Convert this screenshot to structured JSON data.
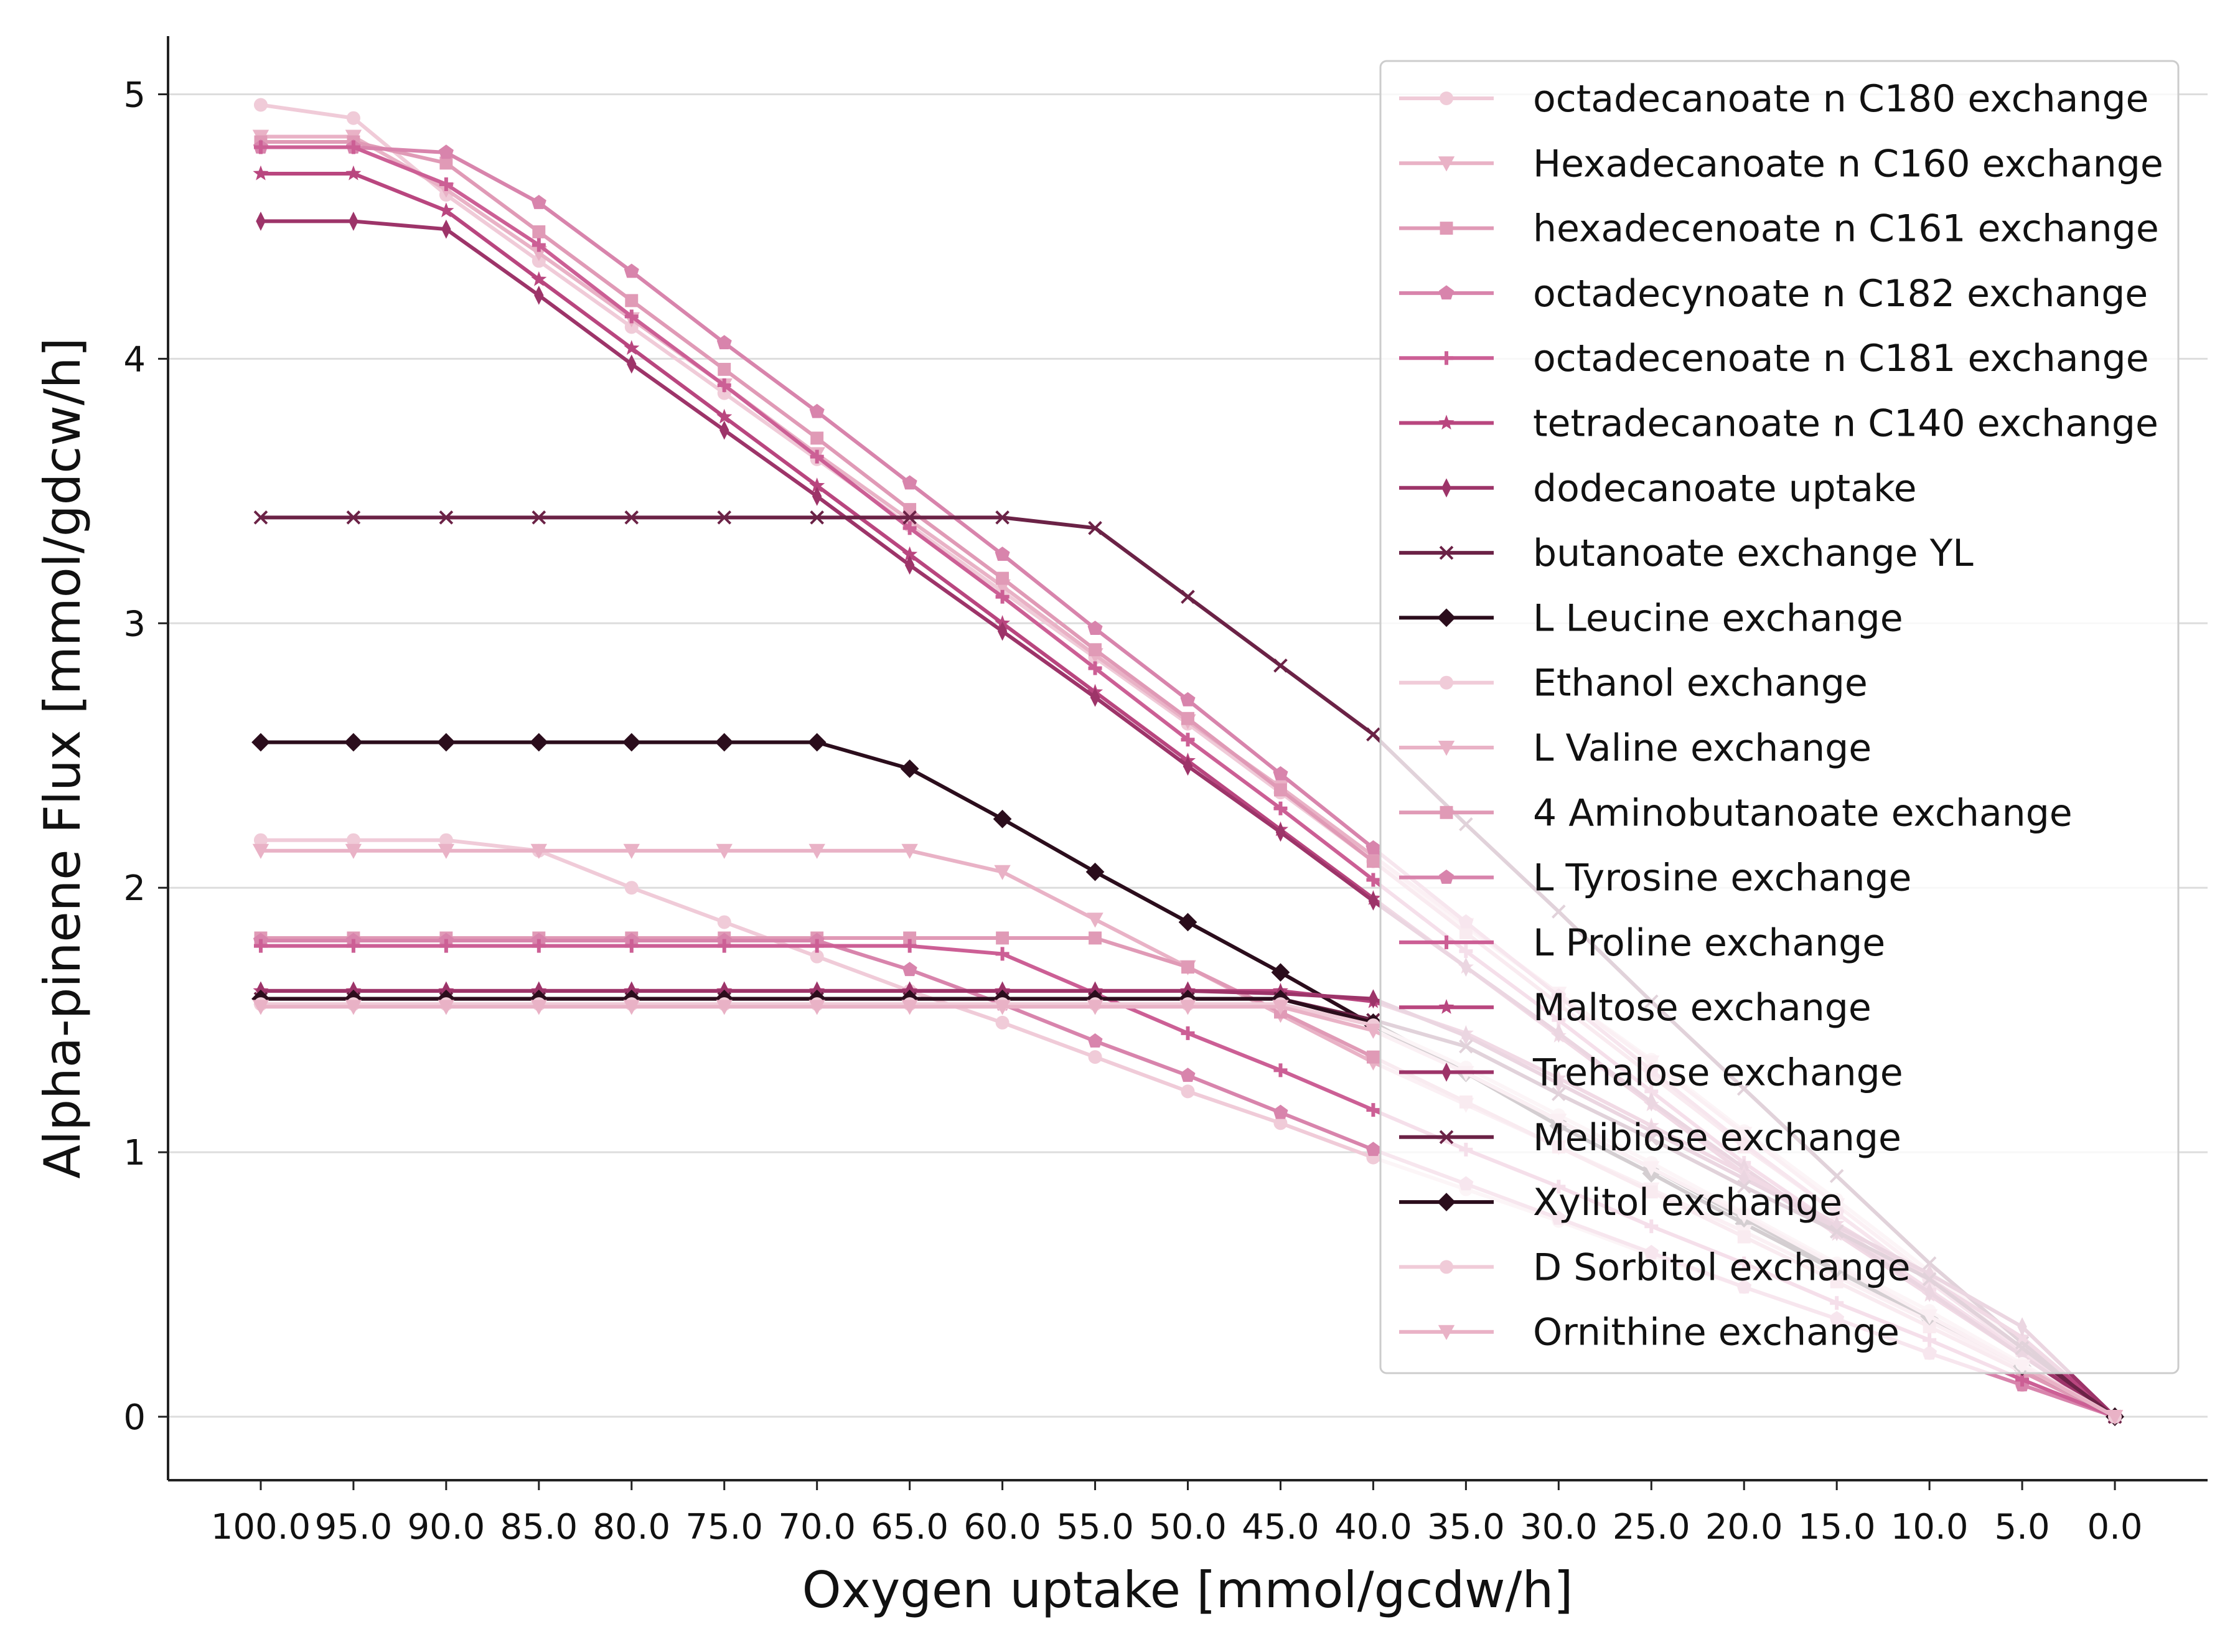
{
  "chart_data": {
    "type": "line",
    "xlabel": "Oxygen uptake [mmol/gcdw/h]",
    "ylabel": "Alpha-pinene Flux [mmol/gdcw/h]",
    "x": [
      100,
      95,
      90,
      85,
      80,
      75,
      70,
      65,
      60,
      55,
      50,
      45,
      40,
      35,
      30,
      25,
      20,
      15,
      10,
      5,
      0
    ],
    "x_tick_labels": [
      "100.0",
      "95.0",
      "90.0",
      "85.0",
      "80.0",
      "75.0",
      "70.0",
      "65.0",
      "60.0",
      "55.0",
      "50.0",
      "45.0",
      "40.0",
      "35.0",
      "30.0",
      "25.0",
      "20.0",
      "15.0",
      "10.0",
      "5.0",
      "0.0"
    ],
    "xlim": [
      105,
      -5
    ],
    "y_ticks": [
      0,
      1,
      2,
      3,
      4,
      5
    ],
    "y_tick_labels": [
      "0",
      "1",
      "2",
      "3",
      "4",
      "5"
    ],
    "ylim": [
      -0.24,
      5.22
    ],
    "grid": "horizontal",
    "legend_position": "top-right",
    "series": [
      {
        "name": "octadecanoate n C180 exchange",
        "color": "#f0cbd8",
        "marker": "circle",
        "values": [
          4.96,
          4.91,
          4.62,
          4.37,
          4.12,
          3.87,
          3.62,
          3.37,
          3.12,
          2.87,
          2.62,
          2.36,
          2.1,
          1.85,
          1.6,
          1.35,
          1.08,
          0.82,
          0.55,
          0.28,
          0.0
        ]
      },
      {
        "name": "Hexadecanoate n C160 exchange",
        "color": "#e9b2c6",
        "marker": "triangle-down",
        "values": [
          4.84,
          4.84,
          4.64,
          4.4,
          4.15,
          3.9,
          3.64,
          3.39,
          3.14,
          2.88,
          2.63,
          2.38,
          2.12,
          1.86,
          1.6,
          1.34,
          1.07,
          0.8,
          0.53,
          0.26,
          0.0
        ]
      },
      {
        "name": "hexadecenoate n C161 exchange",
        "color": "#e09ab6",
        "marker": "square",
        "values": [
          4.82,
          4.82,
          4.74,
          4.48,
          4.22,
          3.96,
          3.7,
          3.43,
          3.17,
          2.9,
          2.64,
          2.37,
          2.1,
          1.83,
          1.56,
          1.29,
          1.02,
          0.77,
          0.51,
          0.25,
          0.0
        ]
      },
      {
        "name": "octadecynoate n C182 exchange",
        "color": "#d884ac",
        "marker": "pentagon",
        "values": [
          4.8,
          4.8,
          4.78,
          4.59,
          4.33,
          4.06,
          3.8,
          3.53,
          3.26,
          2.98,
          2.71,
          2.43,
          2.15,
          1.87,
          1.59,
          1.31,
          1.03,
          0.77,
          0.51,
          0.25,
          0.0
        ]
      },
      {
        "name": "octadecenoate n C181 exchange",
        "color": "#cc5f95",
        "marker": "plus",
        "values": [
          4.8,
          4.8,
          4.66,
          4.43,
          4.16,
          3.9,
          3.63,
          3.36,
          3.1,
          2.83,
          2.56,
          2.3,
          2.03,
          1.76,
          1.5,
          1.23,
          0.96,
          0.72,
          0.48,
          0.24,
          0.0
        ]
      },
      {
        "name": "tetradecanoate n C140 exchange",
        "color": "#b9467f",
        "marker": "star",
        "values": [
          4.7,
          4.7,
          4.56,
          4.3,
          4.04,
          3.78,
          3.52,
          3.26,
          3.0,
          2.74,
          2.48,
          2.22,
          1.96,
          1.7,
          1.44,
          1.18,
          0.92,
          0.69,
          0.46,
          0.23,
          0.0
        ]
      },
      {
        "name": "dodecanoate uptake",
        "color": "#9d3469",
        "marker": "thin-diamond",
        "values": [
          4.52,
          4.52,
          4.49,
          4.24,
          3.98,
          3.73,
          3.48,
          3.22,
          2.97,
          2.72,
          2.46,
          2.21,
          1.95,
          1.7,
          1.45,
          1.19,
          0.94,
          0.7,
          0.47,
          0.23,
          0.0
        ]
      },
      {
        "name": "butanoate exchange YL",
        "color": "#6b2246",
        "marker": "x",
        "values": [
          3.4,
          3.4,
          3.4,
          3.4,
          3.4,
          3.4,
          3.4,
          3.4,
          3.4,
          3.36,
          3.1,
          2.84,
          2.58,
          2.24,
          1.91,
          1.57,
          1.24,
          0.91,
          0.58,
          0.28,
          0.0
        ]
      },
      {
        "name": "L Leucine exchange",
        "color": "#2b0d1c",
        "marker": "diamond",
        "values": [
          2.55,
          2.55,
          2.55,
          2.55,
          2.55,
          2.55,
          2.55,
          2.45,
          2.26,
          2.06,
          1.87,
          1.68,
          1.48,
          1.3,
          1.1,
          0.92,
          0.73,
          0.55,
          0.37,
          0.18,
          0.0
        ]
      },
      {
        "name": "Ethanol exchange",
        "color": "#f0cbd8",
        "marker": "circle",
        "values": [
          2.18,
          2.18,
          2.18,
          2.14,
          2.0,
          1.87,
          1.74,
          1.61,
          1.49,
          1.36,
          1.23,
          1.11,
          0.98,
          0.86,
          0.74,
          0.61,
          0.49,
          0.37,
          0.24,
          0.12,
          0.0
        ]
      },
      {
        "name": "L Valine exchange",
        "color": "#e9b2c6",
        "marker": "triangle-down",
        "values": [
          2.14,
          2.14,
          2.14,
          2.14,
          2.14,
          2.14,
          2.14,
          2.14,
          2.06,
          1.88,
          1.7,
          1.52,
          1.34,
          1.18,
          1.02,
          0.86,
          0.7,
          0.53,
          0.36,
          0.18,
          0.0
        ]
      },
      {
        "name": "4 Aminobutanoate exchange",
        "color": "#e09ab6",
        "marker": "square",
        "values": [
          1.81,
          1.81,
          1.81,
          1.81,
          1.81,
          1.81,
          1.81,
          1.81,
          1.81,
          1.81,
          1.7,
          1.53,
          1.36,
          1.19,
          1.02,
          0.85,
          0.68,
          0.51,
          0.34,
          0.17,
          0.0
        ]
      },
      {
        "name": "L Tyrosine exchange",
        "color": "#d884ac",
        "marker": "pentagon",
        "values": [
          1.8,
          1.8,
          1.8,
          1.8,
          1.8,
          1.8,
          1.8,
          1.69,
          1.56,
          1.42,
          1.29,
          1.15,
          1.01,
          0.88,
          0.75,
          0.62,
          0.49,
          0.37,
          0.24,
          0.12,
          0.0
        ]
      },
      {
        "name": "L Proline exchange",
        "color": "#cc5f95",
        "marker": "plus",
        "values": [
          1.78,
          1.78,
          1.78,
          1.78,
          1.78,
          1.78,
          1.78,
          1.78,
          1.75,
          1.6,
          1.45,
          1.31,
          1.16,
          1.01,
          0.87,
          0.72,
          0.58,
          0.43,
          0.29,
          0.14,
          0.0
        ]
      },
      {
        "name": "Maltose exchange",
        "color": "#b9467f",
        "marker": "star",
        "values": [
          1.61,
          1.61,
          1.61,
          1.61,
          1.61,
          1.61,
          1.61,
          1.61,
          1.61,
          1.61,
          1.61,
          1.61,
          1.57,
          1.45,
          1.28,
          1.1,
          0.92,
          0.73,
          0.52,
          0.3,
          0.0
        ]
      },
      {
        "name": "Trehalose exchange",
        "color": "#9d3469",
        "marker": "thin-diamond",
        "values": [
          1.61,
          1.61,
          1.61,
          1.61,
          1.61,
          1.61,
          1.61,
          1.61,
          1.61,
          1.61,
          1.61,
          1.6,
          1.58,
          1.44,
          1.26,
          1.08,
          0.9,
          0.72,
          0.54,
          0.34,
          0.0
        ]
      },
      {
        "name": "Melibiose exchange",
        "color": "#6b2246",
        "marker": "x",
        "values": [
          1.58,
          1.58,
          1.58,
          1.58,
          1.58,
          1.58,
          1.58,
          1.58,
          1.58,
          1.58,
          1.58,
          1.58,
          1.5,
          1.4,
          1.22,
          1.05,
          0.87,
          0.7,
          0.52,
          0.26,
          0.0
        ]
      },
      {
        "name": "Xylitol exchange",
        "color": "#2b0d1c",
        "marker": "diamond",
        "values": [
          1.58,
          1.58,
          1.58,
          1.58,
          1.58,
          1.58,
          1.58,
          1.58,
          1.58,
          1.58,
          1.58,
          1.58,
          1.49,
          1.3,
          1.12,
          0.94,
          0.75,
          0.56,
          0.38,
          0.19,
          0.0
        ]
      },
      {
        "name": "D Sorbitol exchange",
        "color": "#f0cbd8",
        "marker": "circle",
        "values": [
          1.56,
          1.56,
          1.56,
          1.56,
          1.56,
          1.56,
          1.56,
          1.56,
          1.56,
          1.56,
          1.56,
          1.56,
          1.48,
          1.32,
          1.14,
          0.96,
          0.77,
          0.58,
          0.4,
          0.2,
          0.0
        ]
      },
      {
        "name": "Ornithine exchange",
        "color": "#e9b2c6",
        "marker": "triangle-down",
        "values": [
          1.55,
          1.55,
          1.55,
          1.55,
          1.55,
          1.55,
          1.55,
          1.55,
          1.55,
          1.55,
          1.55,
          1.55,
          1.46,
          1.3,
          1.12,
          0.94,
          0.76,
          0.57,
          0.38,
          0.19,
          0.0
        ]
      }
    ]
  }
}
